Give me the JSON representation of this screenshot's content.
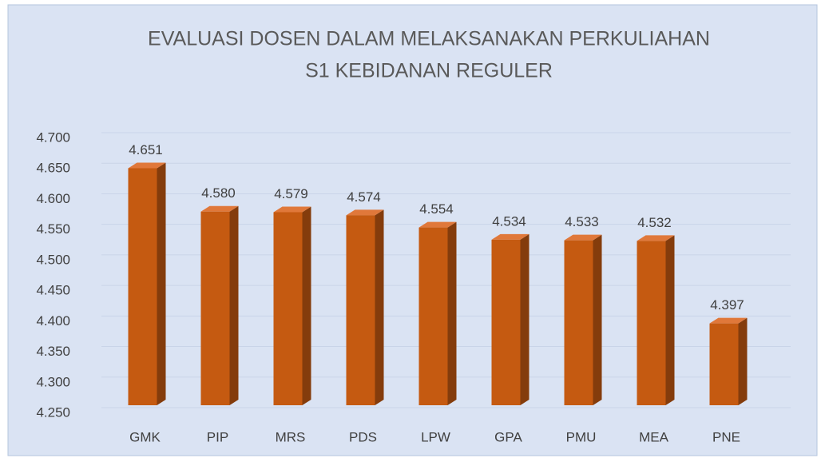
{
  "chart_data": {
    "type": "bar3d",
    "title": "EVALUASI DOSEN DALAM MELAKSANAKAN PERKULIAHAN",
    "subtitle": "S1 KEBIDANAN REGULER",
    "categories": [
      "GMK",
      "PIP",
      "MRS",
      "PDS",
      "LPW",
      "GPA",
      "PMU",
      "MEA",
      "PNE"
    ],
    "values": [
      4.651,
      4.58,
      4.579,
      4.574,
      4.554,
      4.534,
      4.533,
      4.532,
      4.397
    ],
    "value_labels": [
      "4.651",
      "4.580",
      "4.579",
      "4.574",
      "4.554",
      "4.534",
      "4.533",
      "4.532",
      "4.397"
    ],
    "color": "#c55a11",
    "ylim": [
      4.25,
      4.7
    ],
    "yticks": [
      {
        "value": 4.25,
        "label": "4.250"
      },
      {
        "value": 4.3,
        "label": "4.300"
      },
      {
        "value": 4.35,
        "label": "4.350"
      },
      {
        "value": 4.4,
        "label": "4.400"
      },
      {
        "value": 4.45,
        "label": "4.450"
      },
      {
        "value": 4.5,
        "label": "4.500"
      },
      {
        "value": 4.55,
        "label": "4.550"
      },
      {
        "value": 4.6,
        "label": "4.600"
      },
      {
        "value": 4.65,
        "label": "4.650"
      },
      {
        "value": 4.7,
        "label": "4.700"
      }
    ],
    "grid": true
  }
}
